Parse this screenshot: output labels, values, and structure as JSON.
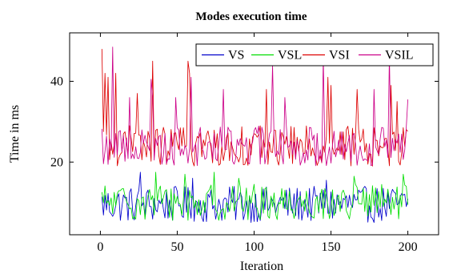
{
  "chart_data": {
    "type": "line",
    "title": "Modes execution time",
    "xlabel": "Iteration",
    "ylabel": "Time in ms",
    "xlim": [
      -20,
      220
    ],
    "ylim": [
      2,
      52
    ],
    "xticks": [
      0,
      50,
      100,
      150,
      200
    ],
    "yticks": [
      20,
      40
    ],
    "grid": false,
    "legend_position": "top-right",
    "legend_layout": "horizontal",
    "series": [
      {
        "name": "VS",
        "color": "#0000cc",
        "baseline": 9.5,
        "amplitude": 4.5,
        "spikes": [
          [
            26,
            17.5
          ],
          [
            60,
            16
          ],
          [
            147,
            15.5
          ]
        ]
      },
      {
        "name": "VSL",
        "color": "#00dd00",
        "baseline": 10,
        "amplitude": 4.5,
        "spikes": [
          [
            36,
            17.5
          ],
          [
            55,
            17
          ],
          [
            74,
            17.5
          ],
          [
            90,
            16
          ],
          [
            165,
            16.5
          ],
          [
            197,
            17
          ]
        ]
      },
      {
        "name": "VSI",
        "color": "#dd0000",
        "baseline": 24,
        "amplitude": 5,
        "spikes": [
          [
            1,
            48
          ],
          [
            3,
            42
          ],
          [
            5,
            41
          ],
          [
            10,
            42
          ],
          [
            24,
            37
          ],
          [
            34,
            45
          ],
          [
            57,
            45
          ],
          [
            58,
            42
          ],
          [
            108,
            38
          ],
          [
            148,
            41
          ],
          [
            150,
            39
          ],
          [
            167,
            38
          ],
          [
            189,
            39
          ],
          [
            193,
            35
          ]
        ]
      },
      {
        "name": "VSIL",
        "color": "#cc0088",
        "baseline": 24,
        "amplitude": 5,
        "spikes": [
          [
            8,
            48.5
          ],
          [
            19,
            36
          ],
          [
            33,
            40.5
          ],
          [
            34,
            36
          ],
          [
            49,
            36
          ],
          [
            59,
            41
          ],
          [
            80,
            38
          ],
          [
            112,
            44
          ],
          [
            120,
            36
          ],
          [
            145,
            46
          ],
          [
            178,
            38
          ],
          [
            188,
            46.5
          ],
          [
            200,
            35.5
          ]
        ]
      }
    ]
  }
}
